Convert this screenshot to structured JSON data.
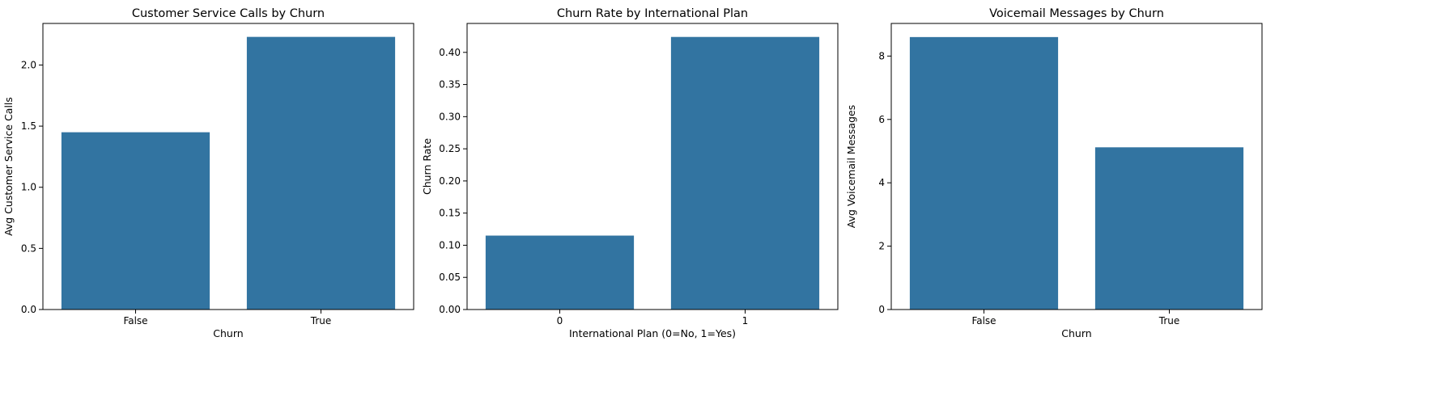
{
  "chart_data": [
    {
      "type": "bar",
      "title": "Customer Service Calls by Churn",
      "xlabel": "Churn",
      "ylabel": "Avg Customer Service Calls",
      "categories": [
        "False",
        "True"
      ],
      "values": [
        1.45,
        2.23
      ],
      "ylim": [
        0,
        2.34
      ],
      "yticks": [
        0.0,
        0.5,
        1.0,
        1.5,
        2.0
      ],
      "ytick_labels": [
        "0.0",
        "0.5",
        "1.0",
        "1.5",
        "2.0"
      ],
      "color": "#3274a1",
      "grid": false
    },
    {
      "type": "bar",
      "title": "Churn Rate by International Plan",
      "xlabel": "International Plan (0=No, 1=Yes)",
      "ylabel": "Churn Rate",
      "categories": [
        "0",
        "1"
      ],
      "values": [
        0.115,
        0.424
      ],
      "ylim": [
        0,
        0.445
      ],
      "yticks": [
        0.0,
        0.05,
        0.1,
        0.15,
        0.2,
        0.25,
        0.3,
        0.35,
        0.4
      ],
      "ytick_labels": [
        "0.00",
        "0.05",
        "0.10",
        "0.15",
        "0.20",
        "0.25",
        "0.30",
        "0.35",
        "0.40"
      ],
      "color": "#3274a1",
      "grid": false
    },
    {
      "type": "bar",
      "title": "Voicemail Messages by Churn",
      "xlabel": "Churn",
      "ylabel": "Avg Voicemail Messages",
      "categories": [
        "False",
        "True"
      ],
      "values": [
        8.6,
        5.12
      ],
      "ylim": [
        0,
        9.03
      ],
      "yticks": [
        0,
        2,
        4,
        6,
        8
      ],
      "ytick_labels": [
        "0",
        "2",
        "4",
        "6",
        "8"
      ],
      "color": "#3274a1",
      "grid": false
    }
  ]
}
